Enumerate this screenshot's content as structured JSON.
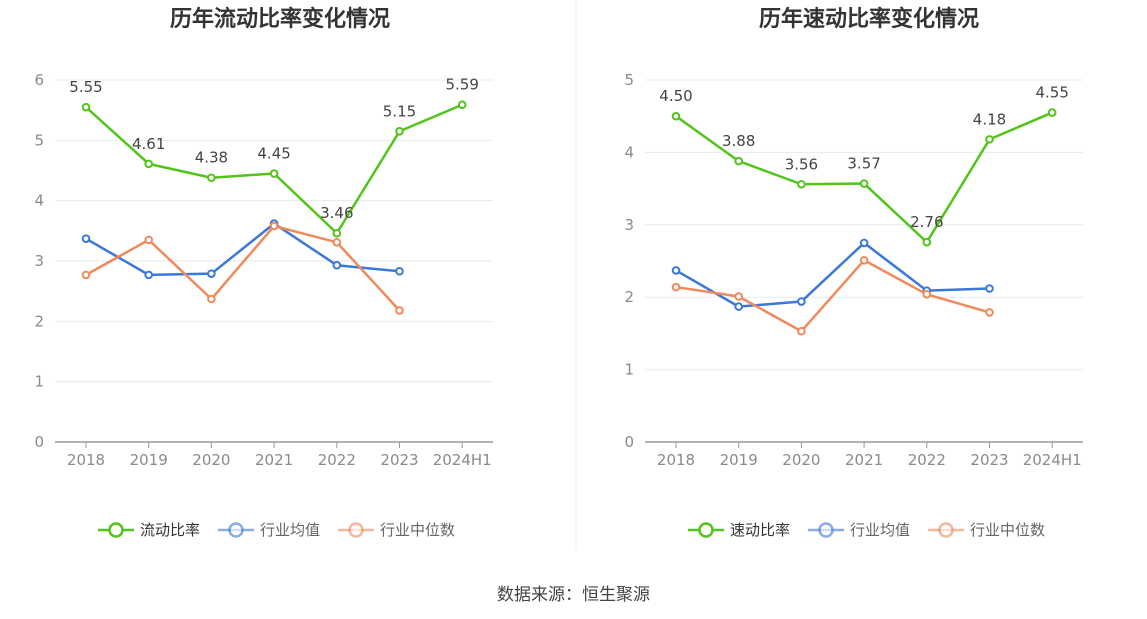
{
  "source_label": "数据来源：恒生聚源",
  "colors": {
    "green": "#52c41a",
    "blue": "#3c78d8",
    "orange": "#f08a5d",
    "grid": "#e6e9f2",
    "axis": "#999999"
  },
  "chart_data": [
    {
      "type": "line",
      "title": "历年流动比率变化情况",
      "categories": [
        "2018",
        "2019",
        "2020",
        "2021",
        "2022",
        "2023",
        "2024H1"
      ],
      "ylim": [
        0,
        6
      ],
      "yticks": [
        "0",
        "1",
        "2",
        "3",
        "4",
        "5",
        "6"
      ],
      "series": [
        {
          "name": "流动比率",
          "color": "#52c41a",
          "labels": true,
          "values": [
            5.55,
            4.61,
            4.38,
            4.45,
            3.46,
            5.15,
            5.59
          ],
          "label_text": [
            "5.55",
            "4.61",
            "4.38",
            "4.45",
            "3.46",
            "5.15",
            "5.59"
          ]
        },
        {
          "name": "行业均值",
          "color": "#3c78d8",
          "labels": false,
          "values": [
            3.37,
            2.77,
            2.79,
            3.62,
            2.93,
            2.83,
            null
          ]
        },
        {
          "name": "行业中位数",
          "color": "#f08a5d",
          "labels": false,
          "values": [
            2.77,
            3.35,
            2.37,
            3.58,
            3.31,
            2.18,
            null
          ]
        }
      ]
    },
    {
      "type": "line",
      "title": "历年速动比率变化情况",
      "categories": [
        "2018",
        "2019",
        "2020",
        "2021",
        "2022",
        "2023",
        "2024H1"
      ],
      "ylim": [
        0,
        5
      ],
      "yticks": [
        "0",
        "1",
        "2",
        "3",
        "4",
        "5"
      ],
      "series": [
        {
          "name": "速动比率",
          "color": "#52c41a",
          "labels": true,
          "values": [
            4.5,
            3.88,
            3.56,
            3.57,
            2.76,
            4.18,
            4.55
          ],
          "label_text": [
            "4.50",
            "3.88",
            "3.56",
            "3.57",
            "2.76",
            "4.18",
            "4.55"
          ]
        },
        {
          "name": "行业均值",
          "color": "#3c78d8",
          "labels": false,
          "values": [
            2.37,
            1.87,
            1.94,
            2.75,
            2.09,
            2.12,
            null
          ]
        },
        {
          "name": "行业中位数",
          "color": "#f08a5d",
          "labels": false,
          "values": [
            2.14,
            2.01,
            1.53,
            2.51,
            2.04,
            1.79,
            null
          ]
        }
      ]
    }
  ]
}
